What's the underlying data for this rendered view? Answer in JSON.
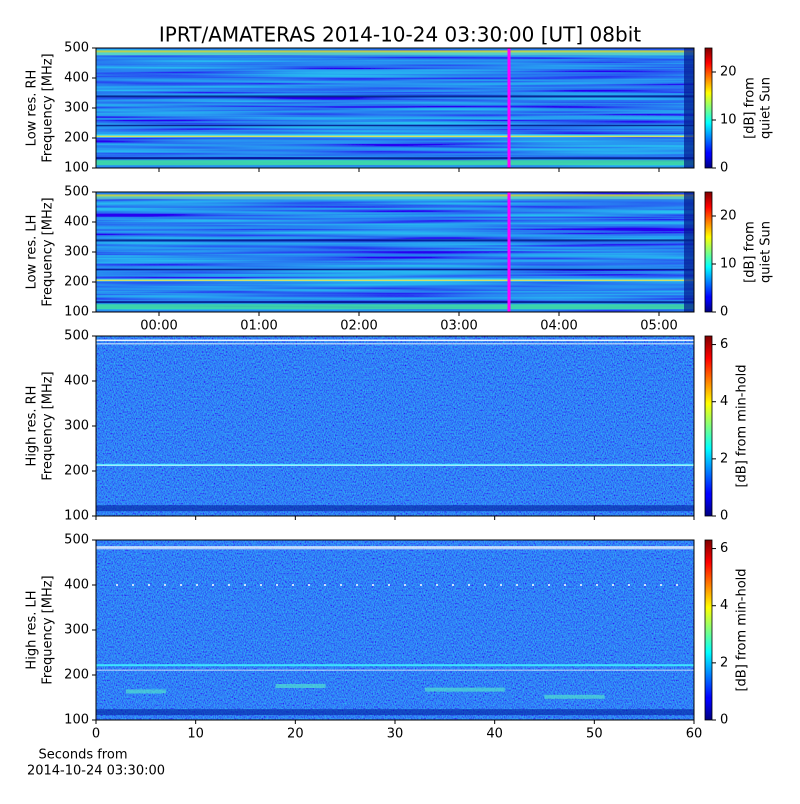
{
  "title": "IPRT/AMATERAS 2014-10-24 03:30:00 [UT]   08bit",
  "chart_data": [
    {
      "type": "spectrogram",
      "y_label": [
        "Low res. RH",
        "Frequency [MHz]"
      ],
      "xlim": [
        -0.63,
        5.35
      ],
      "xticks": [
        0,
        1,
        2,
        3,
        4,
        5
      ],
      "xtick_labels": false,
      "ylim": [
        100,
        500
      ],
      "yticks": [
        100,
        200,
        300,
        400,
        500
      ],
      "marker_x": 3.5,
      "marker_color": "#ff00ff",
      "colormap": "jet",
      "colorbar": {
        "label": [
          "[dB] from",
          "quiet Sun"
        ],
        "lim": [
          0,
          25
        ],
        "ticks": [
          0,
          10,
          20
        ]
      }
    },
    {
      "type": "spectrogram",
      "y_label": [
        "Low res. LH",
        "Frequency [MHz]"
      ],
      "xlim": [
        -0.63,
        5.35
      ],
      "xticks": [
        {
          "value": 0,
          "label": "00:00"
        },
        {
          "value": 1,
          "label": "01:00"
        },
        {
          "value": 2,
          "label": "02:00"
        },
        {
          "value": 3,
          "label": "03:00"
        },
        {
          "value": 4,
          "label": "04:00"
        },
        {
          "value": 5,
          "label": "05:00"
        }
      ],
      "xtick_labels": true,
      "ylim": [
        100,
        500
      ],
      "yticks": [
        100,
        200,
        300,
        400,
        500
      ],
      "marker_x": 3.5,
      "marker_color": "#ff00ff",
      "colormap": "jet",
      "colorbar": {
        "label": [
          "[dB] from",
          "quiet Sun"
        ],
        "lim": [
          0,
          25
        ],
        "ticks": [
          0,
          10,
          20
        ]
      }
    },
    {
      "type": "spectrogram",
      "y_label": [
        "High res. RH",
        "Frequency [MHz]"
      ],
      "xlim": [
        0,
        60
      ],
      "xticks": [
        0,
        10,
        20,
        30,
        40,
        50,
        60
      ],
      "xtick_labels": false,
      "ylim": [
        100,
        500
      ],
      "yticks": [
        100,
        200,
        300,
        400,
        500
      ],
      "colormap": "jet",
      "colorbar": {
        "label": [
          "[dB] from min-hold"
        ],
        "lim": [
          0,
          6.3
        ],
        "ticks": [
          0,
          2,
          4,
          6
        ]
      }
    },
    {
      "type": "spectrogram",
      "y_label": [
        "High res. LH",
        "Frequency [MHz]"
      ],
      "xlim": [
        0,
        60
      ],
      "xticks": [
        0,
        10,
        20,
        30,
        40,
        50,
        60
      ],
      "xtick_labels": true,
      "x_label": [
        "Seconds from",
        "2014-10-24 03:30:00"
      ],
      "ylim": [
        100,
        500
      ],
      "yticks": [
        100,
        200,
        300,
        400,
        500
      ],
      "colormap": "jet",
      "colorbar": {
        "label": [
          "[dB] from min-hold"
        ],
        "lim": [
          0,
          6.3
        ],
        "ticks": [
          0,
          2,
          4,
          6
        ]
      }
    }
  ]
}
